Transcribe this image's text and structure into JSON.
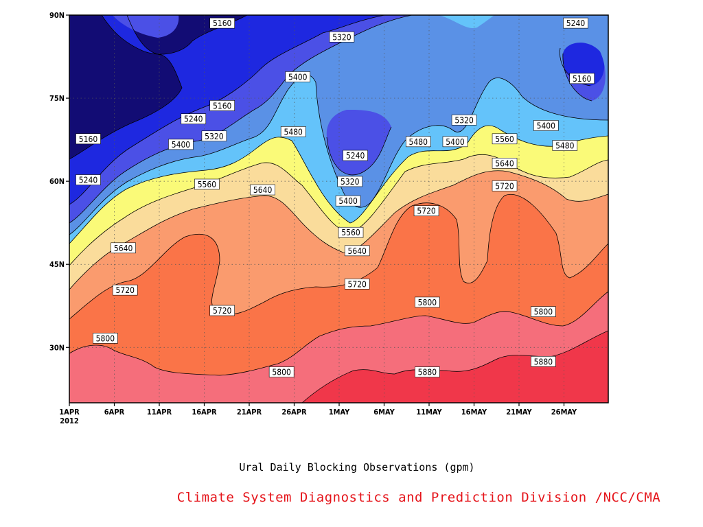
{
  "chart_data": {
    "type": "heatmap",
    "subtitle": "Ural Daily Blocking Observations (gpm)",
    "credit": "Climate System Diagnostics and Prediction Division /NCC/CMA",
    "x_axis": {
      "ticks": [
        "1APR",
        "6APR",
        "11APR",
        "16APR",
        "21APR",
        "26APR",
        "1MAY",
        "6MAY",
        "11MAY",
        "16MAY",
        "21MAY",
        "26MAY"
      ],
      "year_label": "2012",
      "range_days": [
        0,
        60
      ]
    },
    "y_axis": {
      "ticks": [
        "30N",
        "45N",
        "60N",
        "75N",
        "90N"
      ],
      "tick_values": [
        30,
        45,
        60,
        75,
        90
      ],
      "range": [
        20,
        90
      ]
    },
    "contour_levels": [
      5160,
      5240,
      5320,
      5400,
      5480,
      5560,
      5640,
      5720,
      5800,
      5880
    ],
    "band_colors": [
      "#120c74",
      "#1e28e0",
      "#4b50e6",
      "#5a91e6",
      "#64c3fa",
      "#fafa78",
      "#fadc9b",
      "#fa9b6e",
      "#fa7448",
      "#f56e7b",
      "#f0374a"
    ],
    "contour_labels": [
      {
        "day": 17.0,
        "lat": 88.5,
        "text": "5160"
      },
      {
        "day": 30.3,
        "lat": 86.0,
        "text": "5320"
      },
      {
        "day": 56.3,
        "lat": 88.5,
        "text": "5240"
      },
      {
        "day": 57.0,
        "lat": 78.5,
        "text": "5160"
      },
      {
        "day": 25.4,
        "lat": 78.8,
        "text": "5400"
      },
      {
        "day": 17.0,
        "lat": 73.6,
        "text": "5160"
      },
      {
        "day": 13.8,
        "lat": 71.2,
        "text": "5240"
      },
      {
        "day": 16.1,
        "lat": 68.1,
        "text": "5320"
      },
      {
        "day": 12.4,
        "lat": 66.6,
        "text": "5400"
      },
      {
        "day": 24.9,
        "lat": 68.9,
        "text": "5480"
      },
      {
        "day": 2.1,
        "lat": 67.6,
        "text": "5160"
      },
      {
        "day": 2.1,
        "lat": 60.2,
        "text": "5240"
      },
      {
        "day": 31.8,
        "lat": 64.6,
        "text": "5240"
      },
      {
        "day": 38.8,
        "lat": 67.1,
        "text": "5480"
      },
      {
        "day": 42.9,
        "lat": 67.1,
        "text": "5400"
      },
      {
        "day": 43.9,
        "lat": 71.0,
        "text": "5320"
      },
      {
        "day": 48.4,
        "lat": 67.6,
        "text": "5560"
      },
      {
        "day": 53.0,
        "lat": 70.0,
        "text": "5400"
      },
      {
        "day": 55.1,
        "lat": 66.4,
        "text": "5480"
      },
      {
        "day": 15.3,
        "lat": 59.4,
        "text": "5560"
      },
      {
        "day": 21.5,
        "lat": 58.4,
        "text": "5640"
      },
      {
        "day": 31.2,
        "lat": 59.9,
        "text": "5320"
      },
      {
        "day": 31.0,
        "lat": 56.4,
        "text": "5400"
      },
      {
        "day": 48.4,
        "lat": 63.2,
        "text": "5640"
      },
      {
        "day": 48.4,
        "lat": 59.1,
        "text": "5720"
      },
      {
        "day": 39.7,
        "lat": 54.6,
        "text": "5720"
      },
      {
        "day": 31.3,
        "lat": 50.7,
        "text": "5560"
      },
      {
        "day": 32.0,
        "lat": 47.4,
        "text": "5640"
      },
      {
        "day": 6.0,
        "lat": 47.9,
        "text": "5640"
      },
      {
        "day": 6.2,
        "lat": 40.3,
        "text": "5720"
      },
      {
        "day": 17.0,
        "lat": 36.6,
        "text": "5720"
      },
      {
        "day": 32.0,
        "lat": 41.4,
        "text": "5720"
      },
      {
        "day": 39.8,
        "lat": 38.1,
        "text": "5800"
      },
      {
        "day": 4.0,
        "lat": 31.6,
        "text": "5800"
      },
      {
        "day": 23.6,
        "lat": 25.5,
        "text": "5800"
      },
      {
        "day": 39.8,
        "lat": 25.5,
        "text": "5880"
      },
      {
        "day": 52.7,
        "lat": 36.4,
        "text": "5800"
      },
      {
        "day": 52.7,
        "lat": 27.4,
        "text": "5880"
      }
    ]
  }
}
